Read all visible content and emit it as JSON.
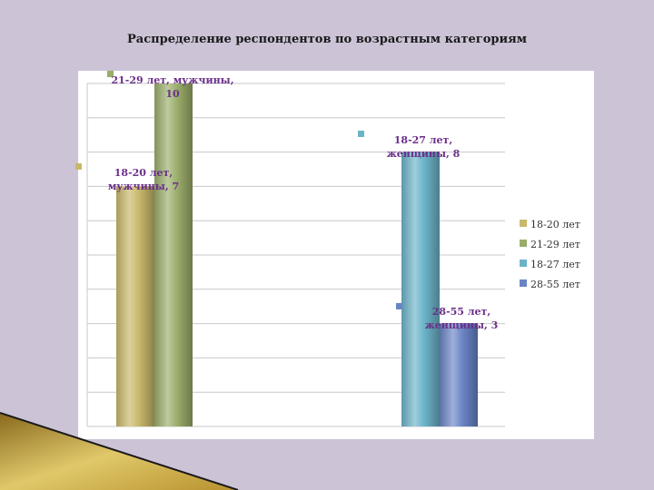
{
  "title": "Распределение респондентов по возрастным категориям",
  "chart_data": {
    "type": "bar",
    "title": "Распределение респондентов по возрастным категориям",
    "xlabel": "",
    "ylabel": "",
    "ylim": [
      0,
      10
    ],
    "grid": true,
    "legend_position": "right",
    "groups": [
      {
        "series": [
          "18-20 лет",
          "21-29 лет"
        ]
      },
      {
        "series": [
          "18-27 лет",
          "28-55 лет"
        ]
      }
    ],
    "series": [
      {
        "name": "18-20 лет",
        "values": [
          7,
          null
        ],
        "color": "#c8b86a",
        "data_label": [
          "18-20 лет,",
          "мужчины, 7"
        ]
      },
      {
        "name": "21-29 лет",
        "values": [
          10,
          null
        ],
        "color": "#9aad6a",
        "data_label": [
          "21-29 лет, мужчины,",
          "10"
        ]
      },
      {
        "name": "18-27 лет",
        "values": [
          null,
          8
        ],
        "color": "#6bb3c8",
        "data_label": [
          "18-27 лет,",
          "женщины, 8"
        ]
      },
      {
        "name": "28-55 лет",
        "values": [
          null,
          3
        ],
        "color": "#6a84c6",
        "data_label": [
          "28-55 лет,",
          "женщины, 3"
        ]
      }
    ]
  }
}
